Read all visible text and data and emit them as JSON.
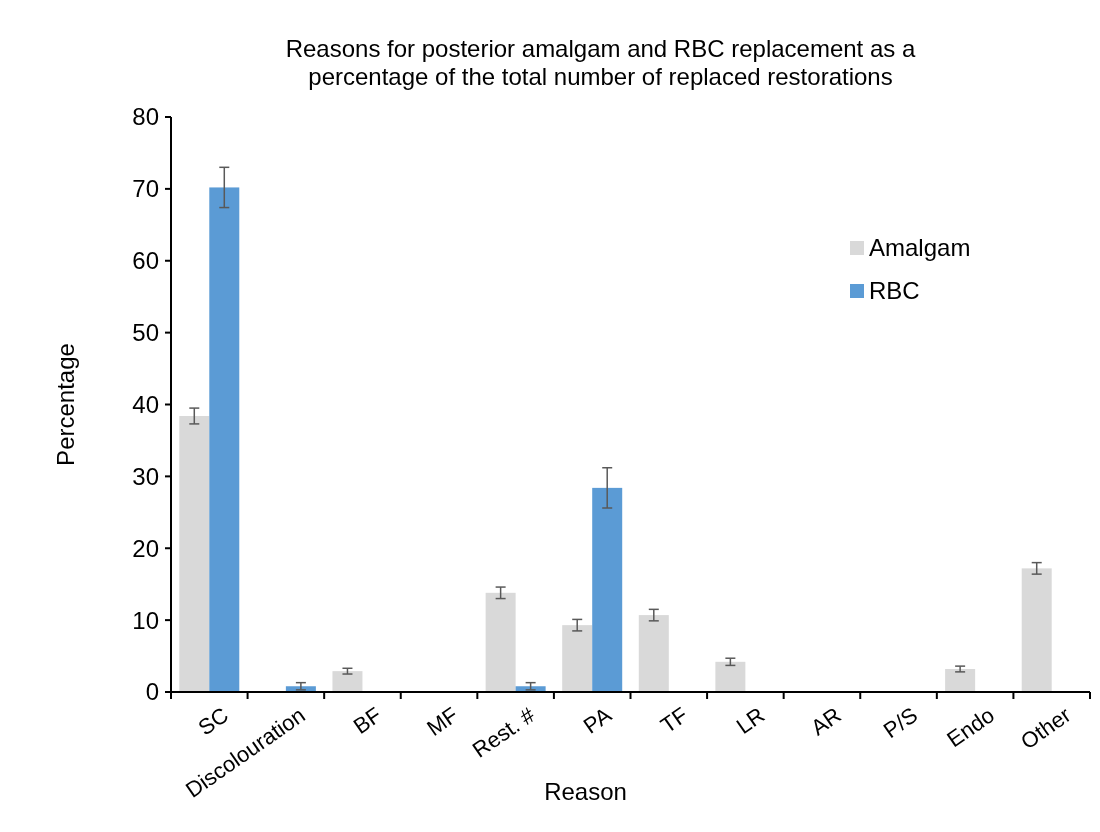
{
  "chart_data": {
    "type": "bar",
    "title": "Reasons for posterior amalgam and RBC replacement as a percentage of the total number of replaced restorations",
    "xlabel": "Reason",
    "ylabel": "Percentage",
    "categories": [
      "SC",
      "Discolouration",
      "BF",
      "MF",
      "Rest. #",
      "PA",
      "TF",
      "LR",
      "AR",
      "P/S",
      "Endo",
      "Other"
    ],
    "series": [
      {
        "name": "Amalgam",
        "color": "#d9d9d9",
        "values": [
          38.4,
          0,
          2.9,
          0,
          13.8,
          9.3,
          10.7,
          4.2,
          0,
          0,
          3.2,
          17.2
        ],
        "errors": [
          1.1,
          null,
          0.4,
          null,
          0.8,
          0.8,
          0.8,
          0.5,
          null,
          null,
          0.4,
          0.8
        ]
      },
      {
        "name": "RBC",
        "color": "#5b9bd5",
        "values": [
          70.2,
          0.8,
          0,
          0,
          0.8,
          28.4,
          0,
          0,
          0,
          0,
          0,
          0
        ],
        "errors": [
          2.8,
          0.5,
          null,
          null,
          0.5,
          2.8,
          null,
          null,
          null,
          null,
          null,
          null
        ]
      }
    ],
    "ylim": [
      0,
      80
    ],
    "yticks": [
      0,
      10,
      20,
      30,
      40,
      50,
      60,
      70,
      80
    ],
    "grid": false,
    "legend": "top right"
  }
}
